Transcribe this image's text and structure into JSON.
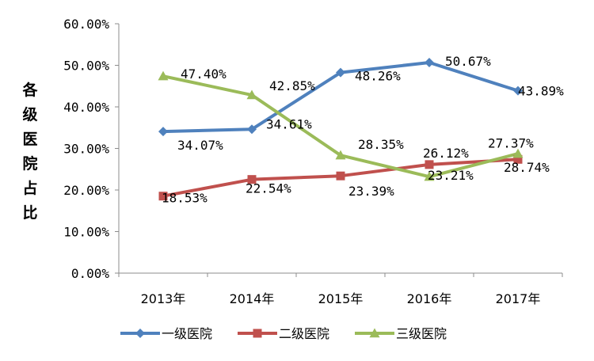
{
  "chart_data": {
    "type": "line",
    "title": "",
    "xlabel": "",
    "ylabel": "各级医院占比",
    "categories": [
      "2013年",
      "2014年",
      "2015年",
      "2016年",
      "2017年"
    ],
    "ylim": [
      0,
      60
    ],
    "yticks": [
      "0.00%",
      "10.00%",
      "20.00%",
      "30.00%",
      "40.00%",
      "50.00%",
      "60.00%"
    ],
    "grid": false,
    "legend": "bottom",
    "series": [
      {
        "name": "一级医院",
        "values": [
          34.07,
          34.61,
          48.26,
          50.67,
          43.89
        ],
        "labels": [
          "34.07%",
          "34.61%",
          "48.26%",
          "50.67%",
          "43.89%"
        ],
        "color": "#4F81BD",
        "marker": "diamond"
      },
      {
        "name": "二级医院",
        "values": [
          18.53,
          22.54,
          23.39,
          26.12,
          27.37
        ],
        "labels": [
          "18.53%",
          "22.54%",
          "23.39%",
          "26.12%",
          "27.37%"
        ],
        "color": "#C0504D",
        "marker": "square"
      },
      {
        "name": "三级医院",
        "values": [
          47.4,
          42.85,
          28.35,
          23.21,
          28.74
        ],
        "labels": [
          "47.40%",
          "42.85%",
          "28.35%",
          "23.21%",
          "28.74%"
        ],
        "color": "#9BBB59",
        "marker": "triangle"
      }
    ]
  }
}
